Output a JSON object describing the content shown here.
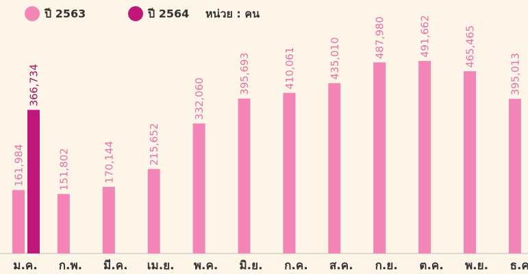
{
  "chart_data": {
    "type": "bar",
    "unit_label": "หน่วย : คน",
    "categories": [
      "ม.ค.",
      "ก.พ.",
      "มี.ค.",
      "เม.ย.",
      "พ.ค.",
      "มิ.ย.",
      "ก.ค.",
      "ส.ค.",
      "ก.ย.",
      "ต.ค.",
      "พ.ย.",
      "ธ.ค."
    ],
    "series": [
      {
        "name": "ปี 2563",
        "color": "#f386b7",
        "label_color": "#e572a6",
        "values": [
          161984,
          151802,
          170144,
          215652,
          332060,
          395693,
          410061,
          435010,
          487980,
          491662,
          465465,
          395013
        ],
        "value_labels": [
          "161,984",
          "151,802",
          "170,144",
          "215,652",
          "332,060",
          "395,693",
          "410,061",
          "435,010",
          "487,980",
          "491,662",
          "465,465",
          "395,013"
        ]
      },
      {
        "name": "ปี 2564",
        "color": "#c0187a",
        "label_color": "#9c1560",
        "values": [
          366734,
          null,
          null,
          null,
          null,
          null,
          null,
          null,
          null,
          null,
          null,
          null
        ],
        "value_labels": [
          "366,734",
          null,
          null,
          null,
          null,
          null,
          null,
          null,
          null,
          null,
          null,
          null
        ]
      }
    ]
  }
}
